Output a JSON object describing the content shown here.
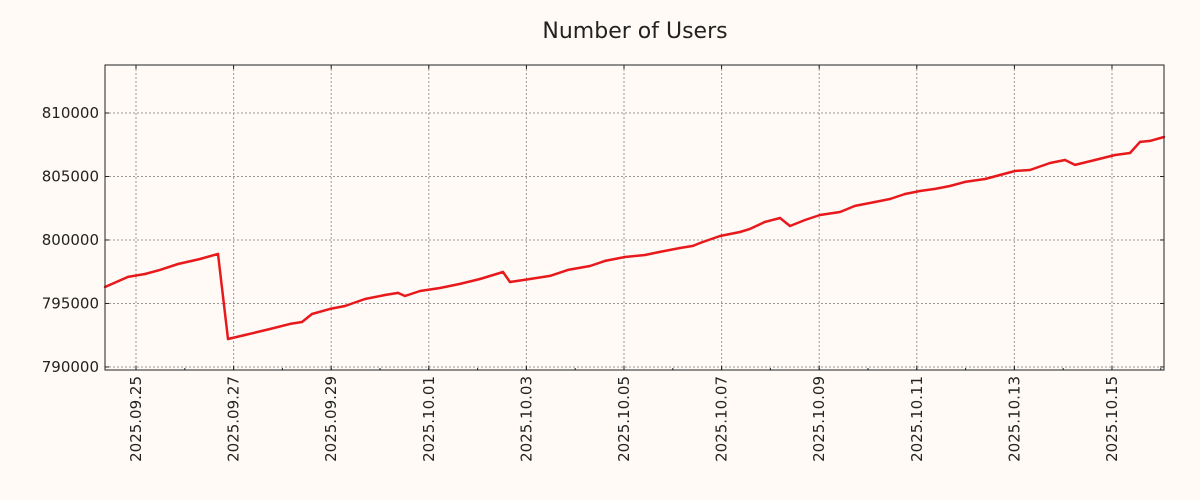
{
  "chart_data": {
    "type": "line",
    "title": "Number of Users",
    "xlabel": "",
    "ylabel": "",
    "xlim": [
      "2025-09-24T08:45",
      "2025-10-16T01:35"
    ],
    "ylim": [
      789760,
      813780
    ],
    "grid": true,
    "x_ticks": [
      "2025.09.25",
      "2025.09.27",
      "2025.09.29",
      "2025.10.01",
      "2025.10.03",
      "2025.10.05",
      "2025.10.07",
      "2025.10.09",
      "2025.10.11",
      "2025.10.13",
      "2025.10.15"
    ],
    "x_tick_dates": [
      "2025-09-25T00:00",
      "2025-09-27T00:00",
      "2025-09-29T00:00",
      "2025-10-01T00:00",
      "2025-10-03T00:00",
      "2025-10-05T00:00",
      "2025-10-07T00:00",
      "2025-10-09T00:00",
      "2025-10-11T00:00",
      "2025-10-13T00:00",
      "2025-10-15T00:00"
    ],
    "y_ticks": [
      790000,
      795000,
      800000,
      805000,
      810000
    ],
    "series": [
      {
        "name": "Number of Users",
        "color": "#e8191c",
        "x": [
          "2025-09-24T08:45",
          "2025-09-24T20:04",
          "2025-09-25T04:25",
          "2025-09-25T11:48",
          "2025-09-25T20:40",
          "2025-09-26T07:28",
          "2025-09-26T16:19",
          "2025-09-26T21:14",
          "2025-09-27T05:37",
          "2025-09-27T17:54",
          "2025-09-28T03:45",
          "2025-09-28T09:39",
          "2025-09-28T14:34",
          "2025-09-28T23:24",
          "2025-09-29T06:47",
          "2025-09-29T16:38",
          "2025-09-30T02:27",
          "2025-09-30T08:51",
          "2025-09-30T12:17",
          "2025-09-30T19:40",
          "2025-10-01T05:31",
          "2025-10-01T15:20",
          "2025-10-02T01:10",
          "2025-10-02T12:29",
          "2025-10-02T15:56",
          "2025-10-03T01:46",
          "2025-10-03T11:37",
          "2025-10-03T20:27",
          "2025-10-04T07:16",
          "2025-10-04T14:40",
          "2025-10-05T00:29",
          "2025-10-05T10:19",
          "2025-10-05T17:42",
          "2025-10-06T03:33",
          "2025-10-06T09:56",
          "2025-10-06T13:22",
          "2025-10-06T23:13",
          "2025-10-07T09:03",
          "2025-10-07T13:58",
          "2025-10-07T21:20",
          "2025-10-08T04:43",
          "2025-10-08T09:38",
          "2025-10-08T17:01",
          "2025-10-09T00:23",
          "2025-10-09T10:13",
          "2025-10-09T17:36",
          "2025-10-10T03:26",
          "2025-10-10T10:49",
          "2025-10-10T18:11",
          "2025-10-11T01:35",
          "2025-10-11T08:57",
          "2025-10-11T16:19",
          "2025-10-11T23:42",
          "2025-10-12T09:33",
          "2025-10-12T16:55",
          "2025-10-13T00:17",
          "2025-10-13T07:41",
          "2025-10-13T17:31",
          "2025-10-14T00:53",
          "2025-10-14T05:48",
          "2025-10-14T15:39",
          "2025-10-15T01:28",
          "2025-10-15T08:51",
          "2025-10-15T13:46",
          "2025-10-15T18:41",
          "2025-10-16T01:35"
        ],
        "y": [
          796300,
          797090,
          797320,
          797640,
          798110,
          798500,
          798900,
          792200,
          792520,
          792990,
          793390,
          793540,
          794170,
          794570,
          794800,
          795350,
          795670,
          795830,
          795590,
          795980,
          796220,
          796540,
          796930,
          797480,
          796690,
          796930,
          797170,
          797640,
          797950,
          798350,
          798660,
          798820,
          799060,
          799370,
          799530,
          799760,
          800310,
          800630,
          800870,
          801420,
          801730,
          801100,
          801570,
          801970,
          802200,
          802680,
          802990,
          803230,
          803620,
          803860,
          804020,
          804250,
          804570,
          804800,
          805120,
          805430,
          805510,
          806060,
          806300,
          805910,
          806300,
          806690,
          806850,
          807720,
          807800,
          808110
        ]
      }
    ]
  }
}
